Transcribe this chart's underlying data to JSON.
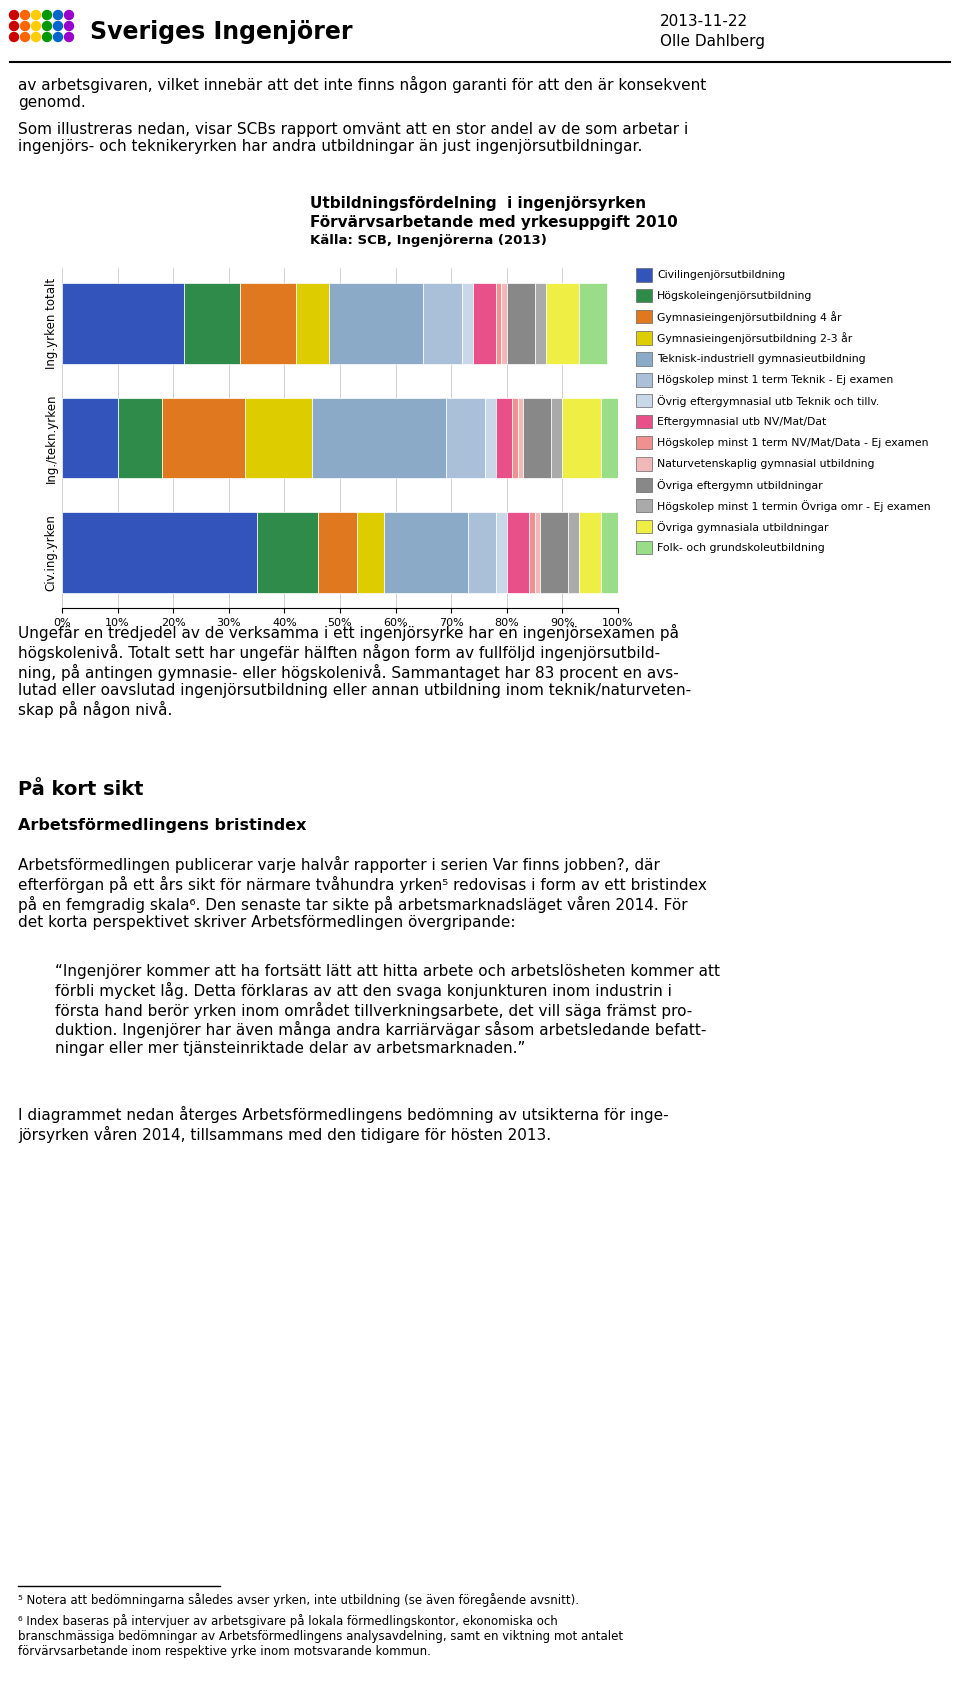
{
  "title_line1": "Utbildningsfördelning  i ingenjörsyrken",
  "title_line2": "Förvärvsarbetande med yrkesuppgift 2010",
  "title_line3": "Källa: SCB, Ingenjörerna (2013)",
  "header_date": "2013-11-22",
  "header_name": "Olle Dahlberg",
  "header_logo_text": "Sveriges Ingenjörer",
  "page_text_1": "av arbetsgivaren, vilket innebär att det inte finns någon garanti för att den är konsekvent\ngenomd.",
  "page_text_2": "Som illustreras nedan, visar SCBs rapport omvänt att en stor andel av de som arbetar i\ningenjörs- och teknikeryrken har andra utbildningar än just ingenjörsutbildningar.",
  "legend_labels": [
    "Civilingenjörsutbildning",
    "Högskoleingenjörsutbildning",
    "Gymnasieingenjörsutbildning 4 år",
    "Gymnasieingenjörsutbildning 2-3 år",
    "Teknisk-industriell gymnasieutbildning",
    "Högskolep minst 1 term Teknik - Ej examen",
    "Övrig eftergymnasial utb Teknik och tillv.",
    "Eftergymnasial utb NV/Mat/Dat",
    "Högskolep minst 1 term NV/Mat/Data - Ej examen",
    "Naturvetenskaplig gymnasial utbildning",
    "Övriga eftergymn utbildningar",
    "Högskolep minst 1 termin Övriga omr - Ej examen",
    "Övriga gymnasiala utbildningar",
    "Folk- och grundskoleutbildning"
  ],
  "colors": [
    "#3355BB",
    "#2E8B4A",
    "#E07820",
    "#DDCC00",
    "#8AAAC8",
    "#AABFD8",
    "#C8D8E8",
    "#E8508A",
    "#F09090",
    "#F0B8B8",
    "#888888",
    "#AAAAAA",
    "#EEEE44",
    "#99DD88"
  ],
  "bar_rows": [
    "Ing.yrken totalt",
    "Ing./tekn.yrken",
    "Civ.ing.yrken"
  ],
  "bar_data": {
    "Ing.yrken totalt": [
      0.22,
      0.1,
      0.1,
      0.06,
      0.17,
      0.07,
      0.02,
      0.04,
      0.01,
      0.01,
      0.05,
      0.02,
      0.06,
      0.05
    ],
    "Ing./tekn.yrken": [
      0.1,
      0.08,
      0.15,
      0.12,
      0.24,
      0.07,
      0.02,
      0.03,
      0.01,
      0.01,
      0.05,
      0.02,
      0.07,
      0.03
    ],
    "Civ.ing.yrken": [
      0.35,
      0.11,
      0.07,
      0.05,
      0.15,
      0.05,
      0.02,
      0.04,
      0.01,
      0.01,
      0.05,
      0.02,
      0.04,
      0.03
    ]
  },
  "body_text_3": "Ungefär en tredjedel av de verksamma i ett ingenjörsyrke har en ingenjörsexamen på\nhögskolenivå. Totalt sett har ungefär hälften någon form av fullföljd ingenjörsutbild-\nning, på antingen gymnasie- eller högskolenivå. Sammantaget har 83 procent en avs-\nlutad eller oavslutad ingenjörsutbildning eller annan utbildning inom teknik/naturveten-\nskap på någon nivå.",
  "section_title": "På kort sikt",
  "section_sub": "Arbetsförmedlingens bristindex",
  "body_text_4": "Arbetsförmedlingen publicerar varje halvår rapporter i serien Var finns jobben?, där\nefterförgan på ett års sikt för närmare tvåhundra yrken⁵ redovisas i form av ett bristindex\npå en femgradig skala⁶. Den senaste tar sikte på arbetsmarknadsläget våren 2014. För\ndet korta perspektivet skriver Arbetsförmedlingen övergripande:",
  "quote_text": "“Ingenjörer kommer att ha fortsätt lätt att hitta arbete och arbetslösheten kommer att\nförbli mycket låg. Detta förklaras av att den svaga konjunkturen inom industrin i\nförsta hand berör yrken inom området tillverkningsarbete, det vill säga främst pro-\nduktion. Ingenjörer har även många andra karriärvägar såsom arbetsledande befatt-\nningar eller mer tjänsteinriktade delar av arbetsmarknaden.”",
  "body_text_7": "I diagrammet nedan återges Arbetsförmedlingens bedömning av utsikterna för inge-\njörsyrken våren 2014, tillsammans med den tidigare för hösten 2013.",
  "footnote_1": "⁵ Notera att bedömningarna således avser yrken, inte utbildning (se även föregående avsnitt).",
  "footnote_2": "⁶ Index baseras på intervjuer av arbetsgivare på lokala förmedlingskontor, ekonomiska och\nbranschmässiga bedömningar av Arbetsförmedlingens analysavdelning, samt en viktning mot antalet\nförvärvsarbetande inom respektive yrke inom motsvarande kommun."
}
